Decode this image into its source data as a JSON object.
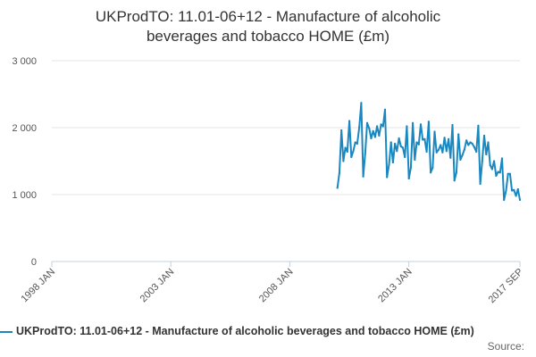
{
  "chart_data": {
    "type": "line",
    "title_line1": "UKProdTO: 11.01-06+12 - Manufacture of alcoholic",
    "title_line2": "beverages and tobacco HOME (£m)",
    "y_ticks": [
      0,
      1000,
      2000,
      3000
    ],
    "y_tick_labels": [
      "0",
      "1 000",
      "2 000",
      "3 000"
    ],
    "ylim": [
      0,
      3000
    ],
    "x_ticks": [
      "1998-01",
      "2003-01",
      "2008-01",
      "2013-01",
      "2017-09"
    ],
    "x_tick_labels": [
      "1998 JAN",
      "2003 JAN",
      "2008 JAN",
      "2013 JAN",
      "2017 SEP"
    ],
    "xlim": [
      "1998-01",
      "2017-09"
    ],
    "grid": "horizontal",
    "legend_position": "bottom",
    "line_color": "#1a88c0",
    "series": [
      {
        "name": "UKProdTO: 11.01-06+12 - Manufacture of alcoholic beverages and tobacco HOME (£m)",
        "x": [
          "2010-01",
          "2010-02",
          "2010-03",
          "2010-04",
          "2010-05",
          "2010-06",
          "2010-07",
          "2010-08",
          "2010-09",
          "2010-10",
          "2010-11",
          "2010-12",
          "2011-01",
          "2011-02",
          "2011-03",
          "2011-04",
          "2011-05",
          "2011-06",
          "2011-07",
          "2011-08",
          "2011-09",
          "2011-10",
          "2011-11",
          "2011-12",
          "2012-01",
          "2012-02",
          "2012-03",
          "2012-04",
          "2012-05",
          "2012-06",
          "2012-07",
          "2012-08",
          "2012-09",
          "2012-10",
          "2012-11",
          "2012-12",
          "2013-01",
          "2013-02",
          "2013-03",
          "2013-04",
          "2013-05",
          "2013-06",
          "2013-07",
          "2013-08",
          "2013-09",
          "2013-10",
          "2013-11",
          "2013-12",
          "2014-01",
          "2014-02",
          "2014-03",
          "2014-04",
          "2014-05",
          "2014-06",
          "2014-07",
          "2014-08",
          "2014-09",
          "2014-10",
          "2014-11",
          "2014-12",
          "2015-01",
          "2015-02",
          "2015-03",
          "2015-04",
          "2015-05",
          "2015-06",
          "2015-07",
          "2015-08",
          "2015-09",
          "2015-10",
          "2015-11",
          "2015-12",
          "2016-01",
          "2016-02",
          "2016-03",
          "2016-04",
          "2016-05",
          "2016-06",
          "2016-07",
          "2016-08",
          "2016-09",
          "2016-10",
          "2016-11",
          "2016-12",
          "2017-01",
          "2017-02",
          "2017-03",
          "2017-04",
          "2017-05",
          "2017-06",
          "2017-07",
          "2017-08",
          "2017-09"
        ],
        "values": [
          1100,
          1320,
          1960,
          1500,
          1700,
          1640,
          2100,
          1560,
          1650,
          1780,
          1760,
          2010,
          2370,
          1270,
          1610,
          2070,
          1990,
          1840,
          1950,
          1860,
          2020,
          1880,
          2050,
          2020,
          2270,
          1260,
          1450,
          1780,
          1480,
          1760,
          1650,
          1840,
          1720,
          1700,
          1560,
          2020,
          1240,
          1400,
          2070,
          1520,
          1780,
          1750,
          2050,
          1820,
          1830,
          1640,
          2090,
          1330,
          1400,
          1940,
          1630,
          1670,
          1740,
          1630,
          1850,
          1650,
          1830,
          1550,
          2040,
          1210,
          1330,
          1900,
          1520,
          1590,
          1670,
          1810,
          1740,
          1780,
          1760,
          1710,
          1640,
          2030,
          1160,
          1500,
          1880,
          1600,
          1780,
          1440,
          1380,
          1500,
          1280,
          1340,
          1330,
          1540,
          920,
          1060,
          1310,
          1310,
          1060,
          1070,
          980,
          1080,
          920
        ]
      }
    ]
  },
  "source_label": "Source:"
}
